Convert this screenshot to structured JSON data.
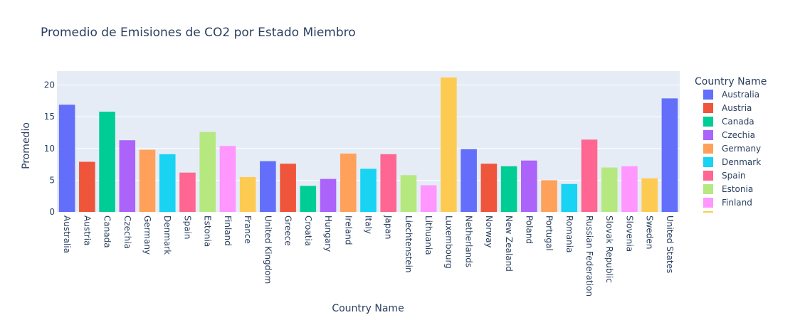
{
  "chart_data": {
    "type": "bar",
    "title": "Promedio de Emisiones de CO2 por Estado Miembro",
    "xlabel": "Country Name",
    "ylabel": "Promedio",
    "ylim": [
      0,
      22.2
    ],
    "yticks": [
      0,
      5,
      10,
      15,
      20
    ],
    "grid": true,
    "legend_title": "Country Name",
    "legend_placement": "right",
    "categories": [
      "Australia",
      "Austria",
      "Canada",
      "Czechia",
      "Germany",
      "Denmark",
      "Spain",
      "Estonia",
      "Finland",
      "France",
      "United Kingdom",
      "Greece",
      "Croatia",
      "Hungary",
      "Ireland",
      "Italy",
      "Japan",
      "Liechtenstein",
      "Lithuania",
      "Luxembourg",
      "Netherlands",
      "Norway",
      "New Zealand",
      "Poland",
      "Portugal",
      "Romania",
      "Russian Federation",
      "Slovak Republic",
      "Slovenia",
      "Sweden",
      "United States"
    ],
    "values": [
      16.9,
      7.9,
      15.8,
      11.3,
      9.8,
      9.1,
      6.2,
      12.6,
      10.4,
      5.5,
      8.0,
      7.6,
      4.1,
      5.2,
      9.2,
      6.8,
      9.1,
      5.8,
      4.2,
      21.2,
      9.9,
      7.6,
      7.2,
      8.1,
      5.0,
      4.4,
      11.4,
      7.0,
      7.2,
      5.3,
      17.9
    ],
    "colors": [
      "#636efa",
      "#EF553B",
      "#00cc96",
      "#ab63fa",
      "#FFA15A",
      "#19d3f3",
      "#FF6692",
      "#B6E880",
      "#FF97FF",
      "#FECB52",
      "#636efa",
      "#EF553B",
      "#00cc96",
      "#ab63fa",
      "#FFA15A",
      "#19d3f3",
      "#FF6692",
      "#B6E880",
      "#FF97FF",
      "#FECB52",
      "#636efa",
      "#EF553B",
      "#00cc96",
      "#ab63fa",
      "#FFA15A",
      "#19d3f3",
      "#FF6692",
      "#B6E880",
      "#FF97FF",
      "#FECB52",
      "#636efa"
    ],
    "legend_entries": [
      "Australia",
      "Austria",
      "Canada",
      "Czechia",
      "Germany",
      "Denmark",
      "Spain",
      "Estonia",
      "Finland"
    ]
  }
}
